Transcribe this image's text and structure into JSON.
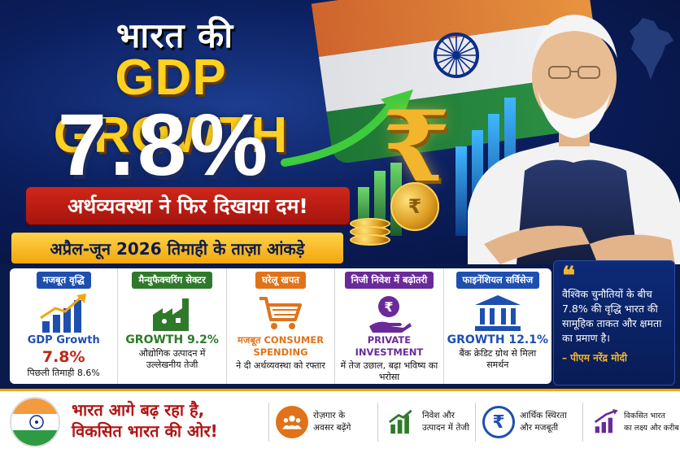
{
  "header": {
    "line1": "भारत की",
    "line2": "GDP GROWTH",
    "line3": "7.8%",
    "tagline": "अर्थव्यवस्था ने फिर दिखाया दम!",
    "subtag": "अप्रैल-जून 2026 तिमाही के ताज़ा आंकड़े"
  },
  "symbols": {
    "rupee": "₹",
    "coin": "₹"
  },
  "cards": [
    {
      "head": "मजबूत वृद्धि",
      "head_color": "#1e4fb0",
      "icon": "bar-chart-up-icon",
      "main_label": "GDP Growth",
      "main_value": "7.8%",
      "sub": "पिछली तिमाही 8.6%"
    },
    {
      "head": "मैन्युफैक्चरिंग सेक्टर",
      "head_color": "#2f7a2a",
      "icon": "factory-gear-icon",
      "main_label": "GROWTH 9.2%",
      "sub": "औद्योगिक उत्पादन में उल्लेखनीय तेजी"
    },
    {
      "head": "घरेलू खपत",
      "head_color": "#e0731a",
      "icon": "shopping-cart-icon",
      "main_label": "मजबूत CONSUMER SPENDING",
      "sub": "ने दी अर्थव्यवस्था को रफ्तार"
    },
    {
      "head": "निजी निवेश में बढ़ोतरी",
      "head_color": "#6a2a9a",
      "icon": "rupee-hand-icon",
      "main_label": "PRIVATE INVESTMENT",
      "sub": "में तेज उछाल, बढ़ा भविष्य का भरोसा"
    },
    {
      "head": "फाइनेंशियल सर्विसेज",
      "head_color": "#1e4fb0",
      "icon": "bank-icon",
      "main_label": "GROWTH 12.1%",
      "sub": "बैंक क्रेडिट ग्रोथ से मिला समर्थन"
    }
  ],
  "quote": {
    "mark": "❝",
    "text": "वैश्विक चुनौतियों के बीच 7.8% की वृद्धि भारत की सामूहिक ताकत और क्षमता का प्रमाण है।",
    "author": "– पीएम नरेंद्र मोदी"
  },
  "footer": {
    "title_line1": "भारत आगे बढ़ रहा है,",
    "title_line2": "विकसित भारत की ओर!",
    "items": [
      {
        "icon": "people-icon",
        "icon_color": "#e0731a",
        "line1": "रोज़गार के",
        "line2": "अवसर बढ़ेंगे"
      },
      {
        "icon": "growth-chart-icon",
        "icon_color": "#2f7a2a",
        "line1": "निवेश और",
        "line2": "उत्पादन में तेजी"
      },
      {
        "icon": "rupee-circle-icon",
        "icon_color": "#1e4fb0",
        "line1": "आर्थिक स्थिरता",
        "line2": "और मजबूती"
      },
      {
        "icon": "rising-bars-icon",
        "icon_color": "#6a2a9a",
        "line1": "विकसित भारत",
        "line2": "का लक्ष्य और करीब"
      }
    ]
  }
}
